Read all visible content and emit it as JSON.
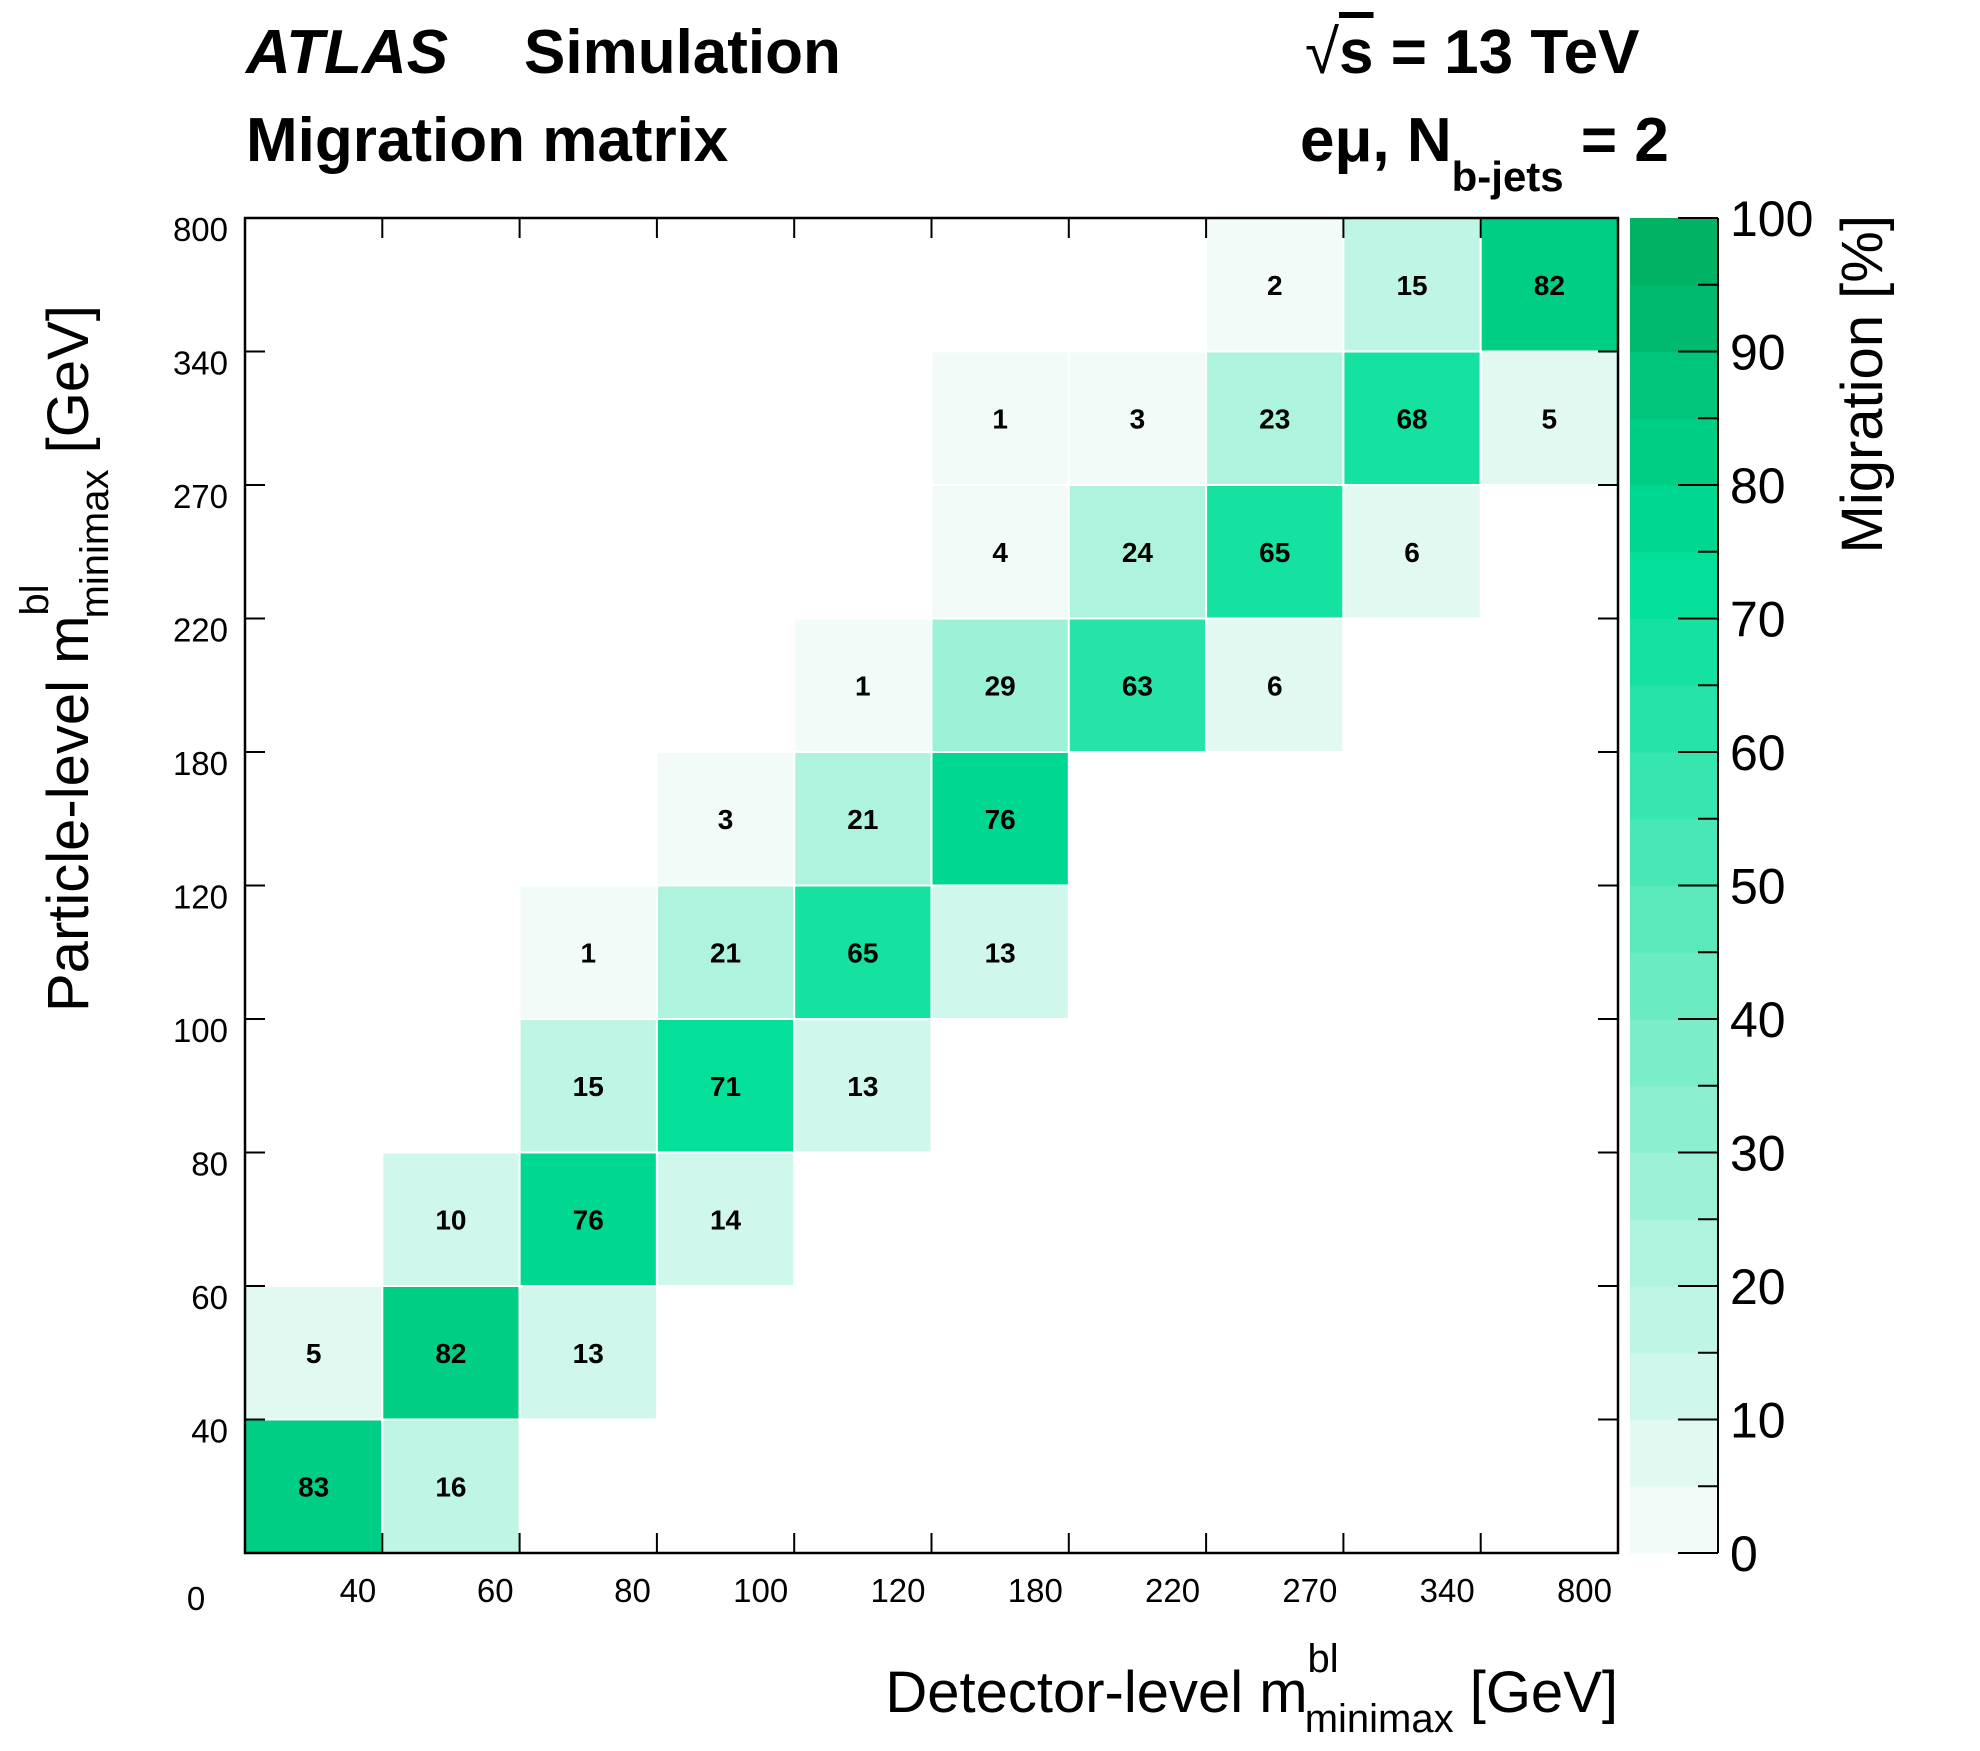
{
  "header": {
    "experiment": "ATLAS",
    "status": "Simulation",
    "subtitle": "Migration matrix",
    "energy_sqrt": "√",
    "energy_s": "s",
    "energy_rest": " = 13 TeV",
    "channel_prefix": "eμ, N",
    "channel_sub": "b-jets",
    "channel_suffix": " = 2"
  },
  "chart_data": {
    "type": "heatmap",
    "title": "Migration matrix",
    "xlabel": "Detector-level m",
    "xlabel_sup": "bl",
    "xlabel_sub": "minimax",
    "xlabel_unit": " [GeV]",
    "ylabel": "Particle-level m",
    "ylabel_sup": "bl",
    "ylabel_sub": "minimax",
    "ylabel_unit": " [GeV]",
    "x_edge_labels": [
      "0",
      "40",
      "60",
      "80",
      "100",
      "120",
      "180",
      "220",
      "270",
      "340",
      "800"
    ],
    "y_edge_labels": [
      "0",
      "40",
      "60",
      "80",
      "100",
      "120",
      "180",
      "220",
      "270",
      "340",
      "800"
    ],
    "colorbar": {
      "label": "Migration [%]",
      "range": [
        0,
        100
      ],
      "ticks": [
        "0",
        "10",
        "20",
        "30",
        "40",
        "50",
        "60",
        "70",
        "80",
        "90",
        "100"
      ]
    },
    "cells": [
      [
        83,
        16,
        null,
        null,
        null,
        null,
        null,
        null,
        null,
        null
      ],
      [
        5,
        82,
        13,
        null,
        null,
        null,
        null,
        null,
        null,
        null
      ],
      [
        null,
        10,
        76,
        14,
        null,
        null,
        null,
        null,
        null,
        null
      ],
      [
        null,
        null,
        15,
        71,
        13,
        null,
        null,
        null,
        null,
        null
      ],
      [
        null,
        null,
        1,
        21,
        65,
        13,
        null,
        null,
        null,
        null
      ],
      [
        null,
        null,
        null,
        3,
        21,
        76,
        null,
        null,
        null,
        null
      ],
      [
        null,
        null,
        null,
        null,
        1,
        29,
        63,
        6,
        null,
        null
      ],
      [
        null,
        null,
        null,
        null,
        null,
        4,
        24,
        65,
        6,
        null
      ],
      [
        null,
        null,
        null,
        null,
        null,
        1,
        3,
        23,
        68,
        5
      ],
      [
        null,
        null,
        null,
        null,
        null,
        null,
        null,
        2,
        15,
        82
      ]
    ]
  }
}
